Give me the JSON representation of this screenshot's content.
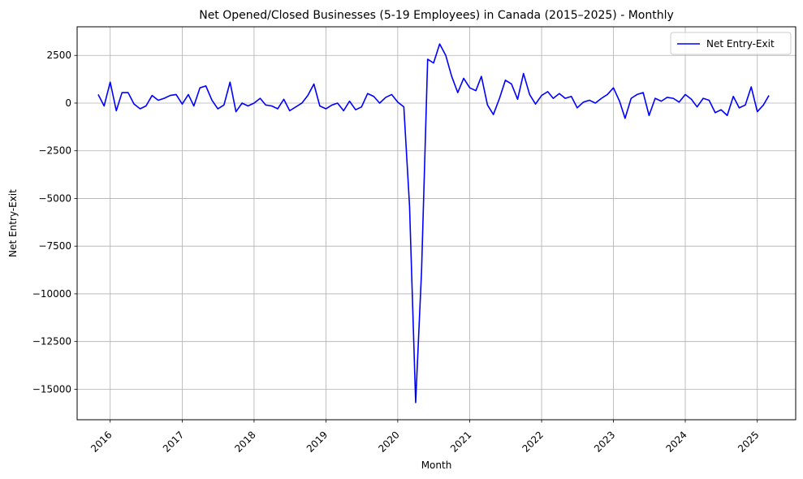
{
  "chart_data": {
    "type": "line",
    "title": "Net Opened/Closed Businesses (5-19 Employees) in Canada (2015–2025) - Monthly",
    "xlabel": "Month",
    "ylabel": "Net Entry-Exit",
    "x_tick_labels": [
      "2016",
      "2017",
      "2018",
      "2019",
      "2020",
      "2021",
      "2022",
      "2023",
      "2024",
      "2025"
    ],
    "y_ticks": [
      2500,
      0,
      -2500,
      -5000,
      -7500,
      -10000,
      -12500,
      -15000
    ],
    "y_tick_labels": [
      "2500",
      "0",
      "−2500",
      "−5000",
      "−7500",
      "−10000",
      "−12500",
      "−15000"
    ],
    "xlim": [
      "2015-07-17",
      "2025-07-15"
    ],
    "ylim": [
      -16600,
      4000
    ],
    "grid": true,
    "legend_position": "upper-right",
    "series": [
      {
        "name": "Net Entry-Exit",
        "color": "#0000ff",
        "points": [
          [
            "2015-11",
            450
          ],
          [
            "2015-12",
            -150
          ],
          [
            "2016-01",
            1100
          ],
          [
            "2016-02",
            -400
          ],
          [
            "2016-03",
            550
          ],
          [
            "2016-04",
            550
          ],
          [
            "2016-05",
            -50
          ],
          [
            "2016-06",
            -300
          ],
          [
            "2016-07",
            -150
          ],
          [
            "2016-08",
            400
          ],
          [
            "2016-09",
            150
          ],
          [
            "2016-10",
            250
          ],
          [
            "2016-11",
            400
          ],
          [
            "2016-12",
            450
          ],
          [
            "2017-01",
            -50
          ],
          [
            "2017-02",
            450
          ],
          [
            "2017-03",
            -150
          ],
          [
            "2017-04",
            800
          ],
          [
            "2017-05",
            900
          ],
          [
            "2017-06",
            150
          ],
          [
            "2017-07",
            -300
          ],
          [
            "2017-08",
            -100
          ],
          [
            "2017-09",
            1100
          ],
          [
            "2017-10",
            -450
          ],
          [
            "2017-11",
            0
          ],
          [
            "2017-12",
            -150
          ],
          [
            "2018-01",
            0
          ],
          [
            "2018-02",
            250
          ],
          [
            "2018-03",
            -100
          ],
          [
            "2018-04",
            -150
          ],
          [
            "2018-05",
            -300
          ],
          [
            "2018-06",
            200
          ],
          [
            "2018-07",
            -400
          ],
          [
            "2018-08",
            -200
          ],
          [
            "2018-09",
            0
          ],
          [
            "2018-10",
            400
          ],
          [
            "2018-11",
            1000
          ],
          [
            "2018-12",
            -150
          ],
          [
            "2019-01",
            -300
          ],
          [
            "2019-02",
            -100
          ],
          [
            "2019-03",
            0
          ],
          [
            "2019-04",
            -400
          ],
          [
            "2019-05",
            100
          ],
          [
            "2019-06",
            -350
          ],
          [
            "2019-07",
            -200
          ],
          [
            "2019-08",
            500
          ],
          [
            "2019-09",
            350
          ],
          [
            "2019-10",
            0
          ],
          [
            "2019-11",
            300
          ],
          [
            "2019-12",
            450
          ],
          [
            "2020-01",
            50
          ],
          [
            "2020-02",
            -200
          ],
          [
            "2020-03",
            -5400
          ],
          [
            "2020-04",
            -15700
          ],
          [
            "2020-05",
            -8800
          ],
          [
            "2020-06",
            2300
          ],
          [
            "2020-07",
            2100
          ],
          [
            "2020-08",
            3100
          ],
          [
            "2020-09",
            2500
          ],
          [
            "2020-10",
            1400
          ],
          [
            "2020-11",
            550
          ],
          [
            "2020-12",
            1300
          ],
          [
            "2021-01",
            800
          ],
          [
            "2021-02",
            650
          ],
          [
            "2021-03",
            1400
          ],
          [
            "2021-04",
            -100
          ],
          [
            "2021-05",
            -600
          ],
          [
            "2021-06",
            250
          ],
          [
            "2021-07",
            1200
          ],
          [
            "2021-08",
            1000
          ],
          [
            "2021-09",
            200
          ],
          [
            "2021-10",
            1550
          ],
          [
            "2021-11",
            450
          ],
          [
            "2021-12",
            -50
          ],
          [
            "2022-01",
            400
          ],
          [
            "2022-02",
            600
          ],
          [
            "2022-03",
            250
          ],
          [
            "2022-04",
            500
          ],
          [
            "2022-05",
            250
          ],
          [
            "2022-06",
            350
          ],
          [
            "2022-07",
            -250
          ],
          [
            "2022-08",
            50
          ],
          [
            "2022-09",
            150
          ],
          [
            "2022-10",
            0
          ],
          [
            "2022-11",
            250
          ],
          [
            "2022-12",
            450
          ],
          [
            "2023-01",
            800
          ],
          [
            "2023-02",
            100
          ],
          [
            "2023-03",
            -800
          ],
          [
            "2023-04",
            250
          ],
          [
            "2023-05",
            450
          ],
          [
            "2023-06",
            550
          ],
          [
            "2023-07",
            -650
          ],
          [
            "2023-08",
            250
          ],
          [
            "2023-09",
            100
          ],
          [
            "2023-10",
            300
          ],
          [
            "2023-11",
            250
          ],
          [
            "2023-12",
            50
          ],
          [
            "2024-01",
            450
          ],
          [
            "2024-02",
            200
          ],
          [
            "2024-03",
            -200
          ],
          [
            "2024-04",
            250
          ],
          [
            "2024-05",
            150
          ],
          [
            "2024-06",
            -500
          ],
          [
            "2024-07",
            -350
          ],
          [
            "2024-08",
            -650
          ],
          [
            "2024-09",
            350
          ],
          [
            "2024-10",
            -250
          ],
          [
            "2024-11",
            -100
          ],
          [
            "2024-12",
            850
          ],
          [
            "2025-01",
            -450
          ],
          [
            "2025-02",
            -100
          ],
          [
            "2025-03",
            400
          ]
        ]
      }
    ]
  }
}
